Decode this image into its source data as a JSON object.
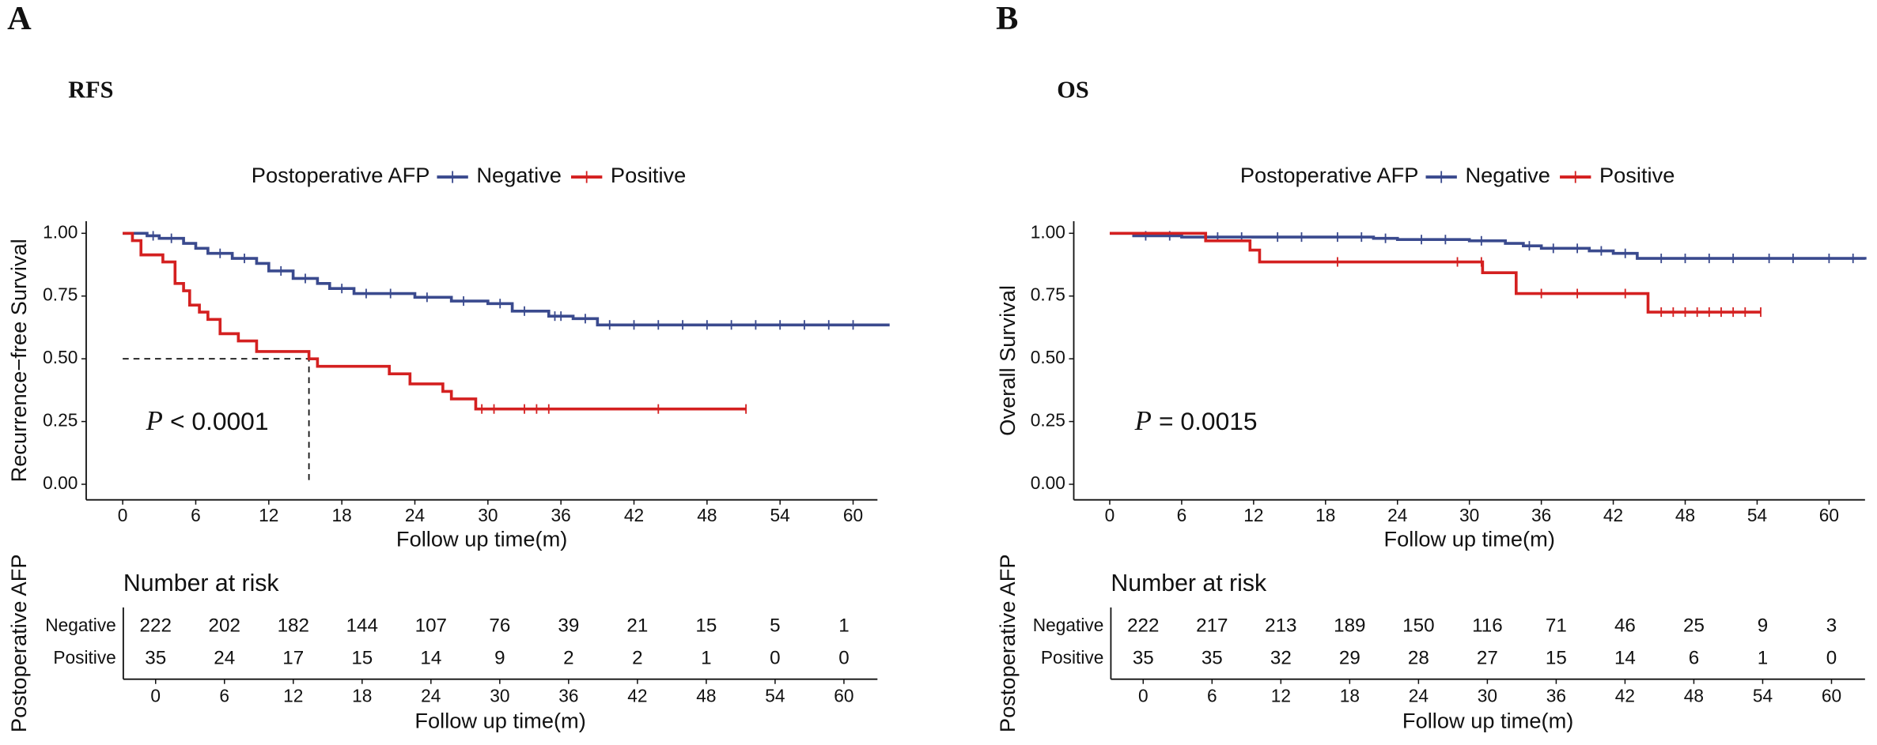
{
  "chart_data": [
    {
      "type": "line",
      "step": true,
      "panel": "A",
      "title": "RFS",
      "legend_title": "Postoperative AFP",
      "xlabel": "Follow up time(m)",
      "ylabel": "Recurrence−free Survival",
      "xlim": [
        -3,
        62
      ],
      "ylim": [
        -0.062,
        1.048
      ],
      "xticks": [
        0,
        6,
        12,
        18,
        24,
        30,
        36,
        42,
        48,
        54,
        60
      ],
      "yticks": [
        {
          "value": 0,
          "label": "0.00"
        },
        {
          "value": 0.25,
          "label": "0.25"
        },
        {
          "value": 0.5,
          "label": "0.50"
        },
        {
          "value": 0.75,
          "label": "0.75"
        },
        {
          "value": 1,
          "label": "1.00"
        }
      ],
      "p_symbol": "P",
      "p_text": "< 0.0001",
      "median": {
        "x": 15.3,
        "y": 0.5
      },
      "series": [
        {
          "name": "Negative",
          "color": "#3a4a8e",
          "x": [
            0,
            2,
            3,
            5,
            6,
            7,
            9,
            11,
            12,
            14,
            16,
            17,
            19,
            24,
            27,
            30,
            32,
            35,
            37,
            39,
            63
          ],
          "values": [
            1,
            0.99,
            0.98,
            0.96,
            0.94,
            0.92,
            0.9,
            0.88,
            0.85,
            0.82,
            0.8,
            0.78,
            0.76,
            0.745,
            0.73,
            0.72,
            0.69,
            0.67,
            0.66,
            0.635,
            0.635
          ],
          "censored": [
            2.5,
            4,
            8,
            10,
            13,
            15,
            18,
            20,
            22,
            25,
            28,
            31,
            33,
            35.5,
            36,
            38,
            40,
            42,
            44,
            46,
            48,
            50,
            52,
            54,
            56,
            58,
            60
          ]
        },
        {
          "name": "Positive",
          "color": "#d42020",
          "x": [
            0,
            0.8,
            1.5,
            3.3,
            4.3,
            5,
            5.5,
            6.3,
            7,
            8,
            9.5,
            11,
            15.3,
            16,
            21.9,
            23.6,
            26.3,
            27,
            29,
            51.2
          ],
          "values": [
            1,
            0.971,
            0.914,
            0.886,
            0.8,
            0.771,
            0.714,
            0.686,
            0.657,
            0.6,
            0.571,
            0.529,
            0.5,
            0.47,
            0.44,
            0.4,
            0.37,
            0.34,
            0.3,
            0.3
          ],
          "censored": [
            29.5,
            30.5,
            33,
            34,
            35,
            44,
            51.2
          ]
        }
      ],
      "risk_table": {
        "title": "Number at risk",
        "ylabel": "Postoperative AFP",
        "xlabel": "Follow up time(m)",
        "times": [
          0,
          6,
          12,
          18,
          24,
          30,
          36,
          42,
          48,
          54,
          60
        ],
        "rows": [
          {
            "name": "Negative",
            "color": "#3a4a8e",
            "counts": [
              222,
              202,
              182,
              144,
              107,
              76,
              39,
              21,
              15,
              5,
              1
            ]
          },
          {
            "name": "Positive",
            "color": "#d42020",
            "counts": [
              35,
              24,
              17,
              15,
              14,
              9,
              2,
              2,
              1,
              0,
              0
            ]
          }
        ]
      }
    },
    {
      "type": "line",
      "step": true,
      "panel": "B",
      "title": "OS",
      "legend_title": "Postoperative AFP",
      "xlabel": "Follow up time(m)",
      "ylabel": "Overall Survival",
      "xlim": [
        -3,
        63
      ],
      "ylim": [
        -0.062,
        1.048
      ],
      "xticks": [
        0,
        6,
        12,
        18,
        24,
        30,
        36,
        42,
        48,
        54,
        60
      ],
      "yticks": [
        {
          "value": 0,
          "label": "0.00"
        },
        {
          "value": 0.25,
          "label": "0.25"
        },
        {
          "value": 0.5,
          "label": "0.50"
        },
        {
          "value": 0.75,
          "label": "0.75"
        },
        {
          "value": 1,
          "label": "1.00"
        }
      ],
      "p_symbol": "P",
      "p_text": "= 0.0015",
      "series": [
        {
          "name": "Negative",
          "color": "#3a4a8e",
          "x": [
            0,
            2,
            6,
            22,
            24,
            30,
            33,
            34.5,
            36,
            40,
            42,
            44,
            63
          ],
          "values": [
            1,
            0.99,
            0.985,
            0.98,
            0.975,
            0.97,
            0.96,
            0.95,
            0.94,
            0.93,
            0.92,
            0.9,
            0.895
          ],
          "censored": [
            3,
            5,
            9,
            11,
            14,
            16,
            19,
            21,
            23,
            26,
            28,
            31,
            35,
            37,
            39,
            41,
            43,
            46,
            48,
            50,
            52,
            55,
            57,
            60,
            62
          ]
        },
        {
          "name": "Positive",
          "color": "#d42020",
          "x": [
            0,
            8,
            11.7,
            12.5,
            31.1,
            33.9,
            44.9,
            54.3
          ],
          "values": [
            1,
            0.97,
            0.933,
            0.886,
            0.843,
            0.76,
            0.686,
            0.686
          ],
          "censored": [
            19,
            29,
            31,
            36,
            39,
            43,
            46,
            47,
            48,
            49,
            50,
            51,
            52,
            53,
            54.3
          ]
        }
      ],
      "risk_table": {
        "title": "Number at risk",
        "ylabel": "Postoperative AFP",
        "xlabel": "Follow up time(m)",
        "times": [
          0,
          6,
          12,
          18,
          24,
          30,
          36,
          42,
          48,
          54,
          60
        ],
        "rows": [
          {
            "name": "Negative",
            "color": "#3a4a8e",
            "counts": [
              222,
              217,
              213,
              189,
              150,
              116,
              71,
              46,
              25,
              9,
              3
            ]
          },
          {
            "name": "Positive",
            "color": "#d42020",
            "counts": [
              35,
              35,
              32,
              29,
              28,
              27,
              15,
              14,
              6,
              1,
              0
            ]
          }
        ]
      }
    }
  ]
}
